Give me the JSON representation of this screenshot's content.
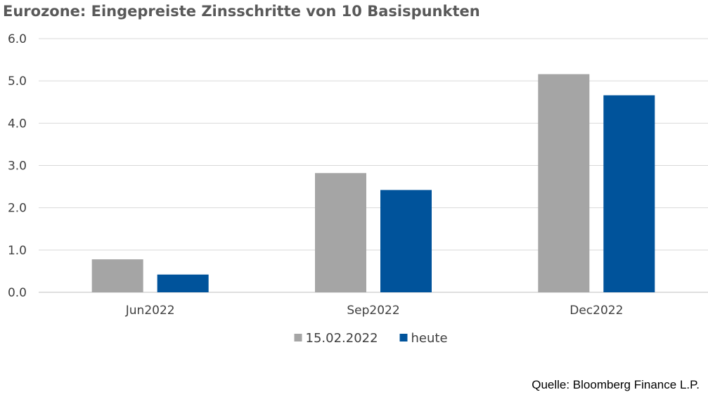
{
  "chart_data": {
    "type": "bar",
    "title": "Eurozone: Eingepreiste Zinsschritte von 10 Basispunkten",
    "categories": [
      "Jun2022",
      "Sep2022",
      "Dec2022"
    ],
    "series": [
      {
        "name": "15.02.2022",
        "color": "#a5a5a5",
        "values": [
          0.78,
          2.82,
          5.16
        ]
      },
      {
        "name": "heute",
        "color": "#00539b",
        "values": [
          0.42,
          2.42,
          4.66
        ]
      }
    ],
    "ylim": [
      0,
      6
    ],
    "yticks": [
      "0.0",
      "1.0",
      "2.0",
      "3.0",
      "4.0",
      "5.0",
      "6.0"
    ],
    "xlabel": "",
    "ylabel": "",
    "grid": true,
    "legend_position": "bottom"
  },
  "source_note": "Quelle: Bloomberg Finance L.P."
}
